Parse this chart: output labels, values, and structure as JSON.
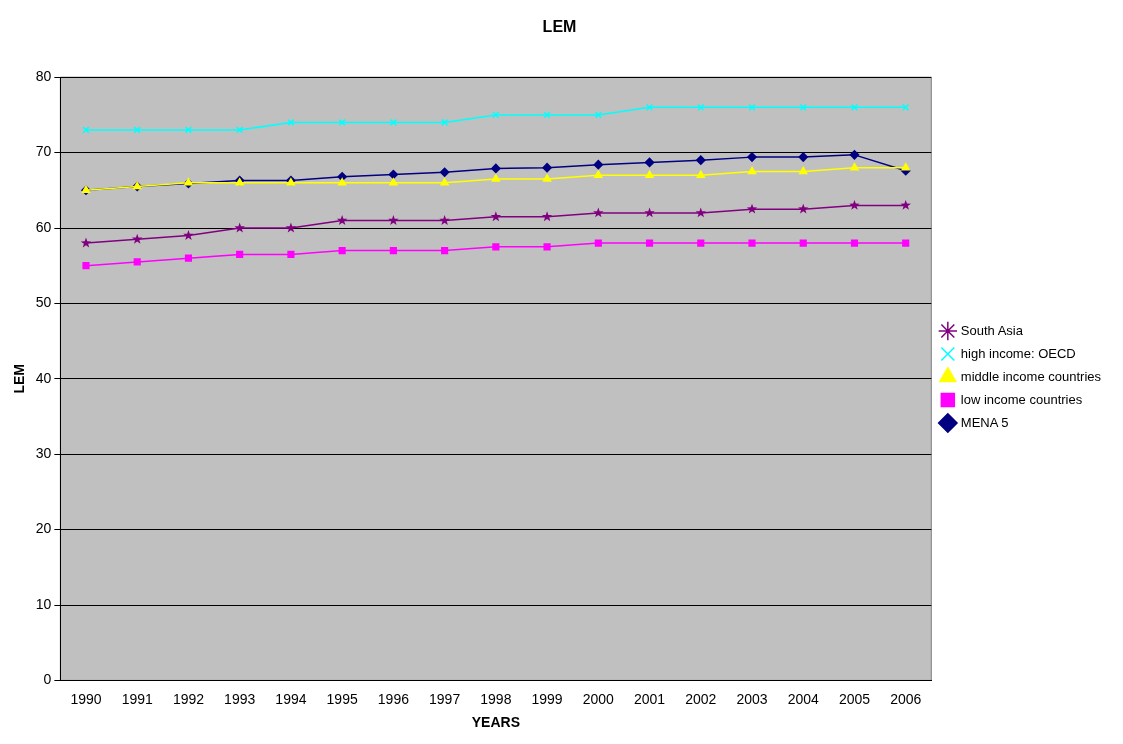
{
  "chart_data": {
    "type": "line",
    "title": "LEM",
    "xlabel": "YEARS",
    "ylabel": "LEM",
    "categories": [
      "1990",
      "1991",
      "1992",
      "1993",
      "1994",
      "1995",
      "1996",
      "1997",
      "1998",
      "1999",
      "2000",
      "2001",
      "2002",
      "2003",
      "2004",
      "2005",
      "2006"
    ],
    "series": [
      {
        "name": "MENA 5",
        "color": "#000080",
        "marker": "diamond",
        "values": [
          65,
          65.5,
          65.9,
          66.3,
          66.3,
          66.8,
          67.1,
          67.4,
          67.9,
          68,
          68.4,
          68.7,
          69,
          69.4,
          69.4,
          69.7,
          67.6
        ]
      },
      {
        "name": "low income countries",
        "color": "#ff00ff",
        "marker": "square",
        "values": [
          55,
          55.5,
          56,
          56.5,
          56.5,
          57,
          57,
          57,
          57.5,
          57.5,
          58,
          58,
          58,
          58,
          58,
          58,
          58
        ]
      },
      {
        "name": "middle income countries",
        "color": "#ffff00",
        "marker": "triangle",
        "values": [
          65,
          65.5,
          66,
          66,
          66,
          66,
          66,
          66,
          66.5,
          66.5,
          67,
          67,
          67,
          67.5,
          67.5,
          68,
          68
        ]
      },
      {
        "name": "high income: OECD",
        "color": "#00ffff",
        "marker": "cross",
        "values": [
          73,
          73,
          73,
          73,
          74,
          74,
          74,
          74,
          75,
          75,
          75,
          76,
          76,
          76,
          76,
          76,
          76
        ]
      },
      {
        "name": "South Asia",
        "color": "#800080",
        "marker": "star",
        "values": [
          58,
          58.5,
          59,
          60,
          60,
          61,
          61,
          61,
          61.5,
          61.5,
          62,
          62,
          62,
          62.5,
          62.5,
          63,
          63
        ]
      }
    ],
    "ylim": [
      0,
      80
    ],
    "yticks": [
      0,
      10,
      20,
      30,
      40,
      50,
      60,
      70,
      80
    ],
    "grid": "y",
    "legend": "right"
  }
}
